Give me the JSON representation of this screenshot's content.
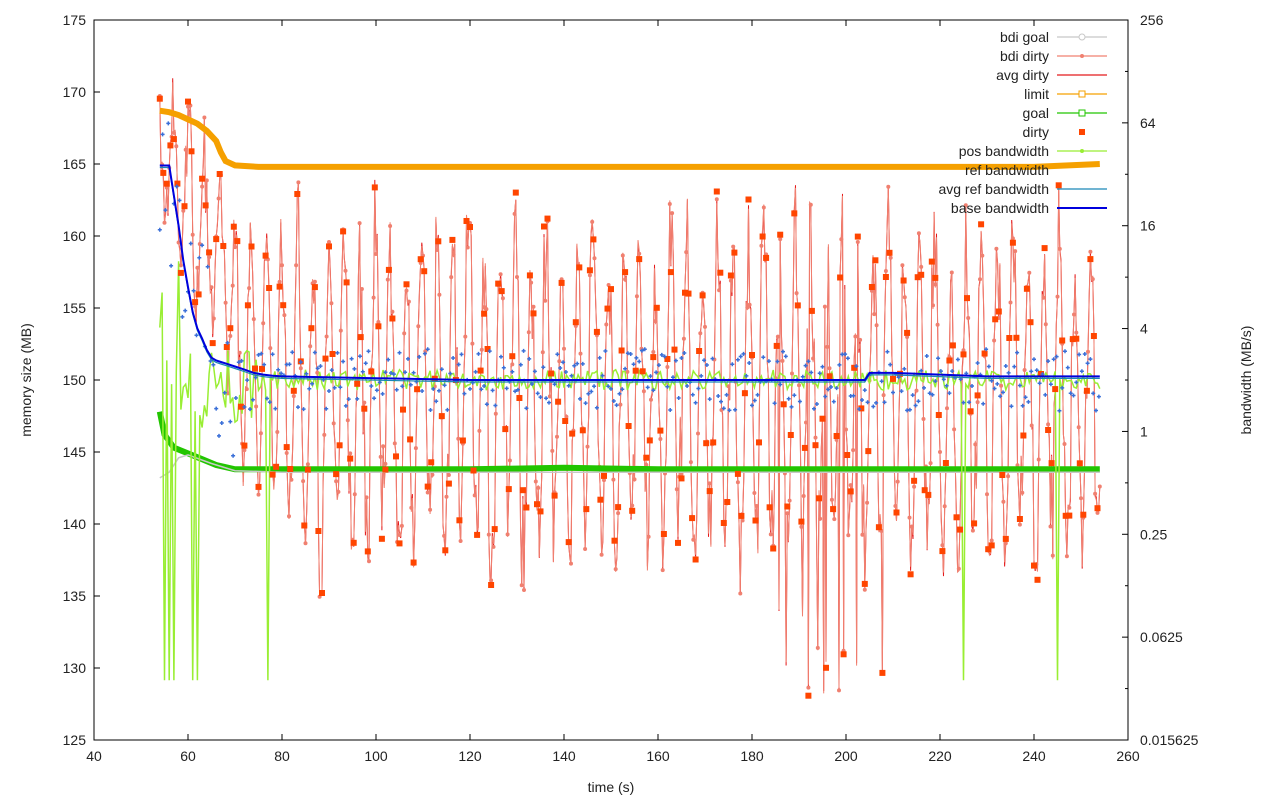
{
  "chart_data": {
    "type": "line",
    "xlabel": "time (s)",
    "ylabel": "memory size (MB)",
    "y2label": "bandwidth (MB/s)",
    "xlim": [
      40,
      260
    ],
    "ylim": [
      125,
      175
    ],
    "y2lim": [
      0.015625,
      256
    ],
    "y2_log_base": 2,
    "grid": false,
    "legend_position": "top-right",
    "x_ticks": [
      "40",
      "60",
      "80",
      "100",
      "120",
      "140",
      "160",
      "180",
      "200",
      "220",
      "240",
      "260"
    ],
    "y_ticks": [
      "125",
      "130",
      "135",
      "140",
      "145",
      "150",
      "155",
      "160",
      "165",
      "170",
      "175"
    ],
    "y2_ticks": [
      "0.015625",
      "0.0625",
      "0.25",
      "1",
      "4",
      "16",
      "64",
      "256"
    ],
    "series": [
      {
        "name": "bdi goal",
        "color": "#c8c8c8",
        "axis": "y",
        "style": "line-point",
        "x": [
          54,
          56,
          58,
          60,
          65,
          70,
          80,
          100,
          120,
          140,
          160,
          180,
          200,
          220,
          240,
          254
        ],
        "y": [
          143.2,
          143.6,
          144.6,
          144.8,
          144.2,
          143.7,
          143.6,
          143.6,
          143.6,
          143.6,
          143.6,
          143.6,
          143.6,
          143.6,
          143.6,
          143.6
        ]
      },
      {
        "name": "bdi dirty",
        "color": "#f08070",
        "axis": "y",
        "style": "line-point"
      },
      {
        "name": "avg dirty",
        "color": "#e41a1c",
        "axis": "y",
        "style": "line"
      },
      {
        "name": "limit",
        "color": "#f5a000",
        "axis": "y",
        "style": "line-point",
        "x": [
          54,
          56,
          58,
          60,
          62,
          64,
          66,
          67,
          68,
          70,
          75,
          80,
          100,
          120,
          140,
          160,
          180,
          200,
          220,
          240,
          254
        ],
        "y": [
          168.7,
          168.6,
          168.4,
          168.1,
          167.8,
          167.3,
          166.6,
          165.8,
          165.2,
          164.9,
          164.8,
          164.8,
          164.8,
          164.8,
          164.8,
          164.8,
          164.8,
          164.8,
          164.8,
          164.8,
          165.0
        ]
      },
      {
        "name": "goal",
        "color": "#22c500",
        "axis": "y",
        "style": "line-point",
        "x": [
          54,
          55,
          57,
          60,
          63,
          66,
          70,
          75,
          80,
          100,
          120,
          140,
          160,
          180,
          200,
          220,
          240,
          254
        ],
        "y": [
          147.8,
          146.2,
          145.3,
          144.9,
          144.5,
          144.1,
          143.8,
          143.8,
          143.8,
          143.8,
          143.8,
          143.9,
          143.8,
          143.8,
          143.8,
          143.8,
          143.8,
          143.8
        ]
      },
      {
        "name": "dirty",
        "color": "#ff4500",
        "axis": "y",
        "style": "points"
      },
      {
        "name": "pos bandwidth",
        "color": "#99ee33",
        "axis": "y2",
        "style": "line-point"
      },
      {
        "name": "ref bandwidth",
        "color": "#3a6fd8",
        "axis": "y2",
        "style": "points"
      },
      {
        "name": "avg ref bandwidth",
        "color": "#1a86b6",
        "axis": "y2",
        "style": "line"
      },
      {
        "name": "base bandwidth",
        "color": "#0000dd",
        "axis": "y2",
        "style": "line",
        "x": [
          54,
          56,
          57,
          58,
          59,
          60,
          61,
          62,
          63,
          64,
          65,
          66,
          67,
          68,
          70,
          72,
          74,
          76,
          78,
          80,
          100,
          120,
          140,
          160,
          180,
          200,
          204,
          205,
          210,
          220,
          230,
          240,
          254
        ],
        "y": [
          36,
          36,
          24,
          16,
          10,
          7,
          5,
          4,
          3.5,
          3,
          2.7,
          2.6,
          2.55,
          2.5,
          2.4,
          2.3,
          2.2,
          2.15,
          2.12,
          2.1,
          2.05,
          2.0,
          2.0,
          2.0,
          2.0,
          2.0,
          2.0,
          2.2,
          2.2,
          2.15,
          2.1,
          2.1,
          2.1
        ]
      }
    ]
  }
}
